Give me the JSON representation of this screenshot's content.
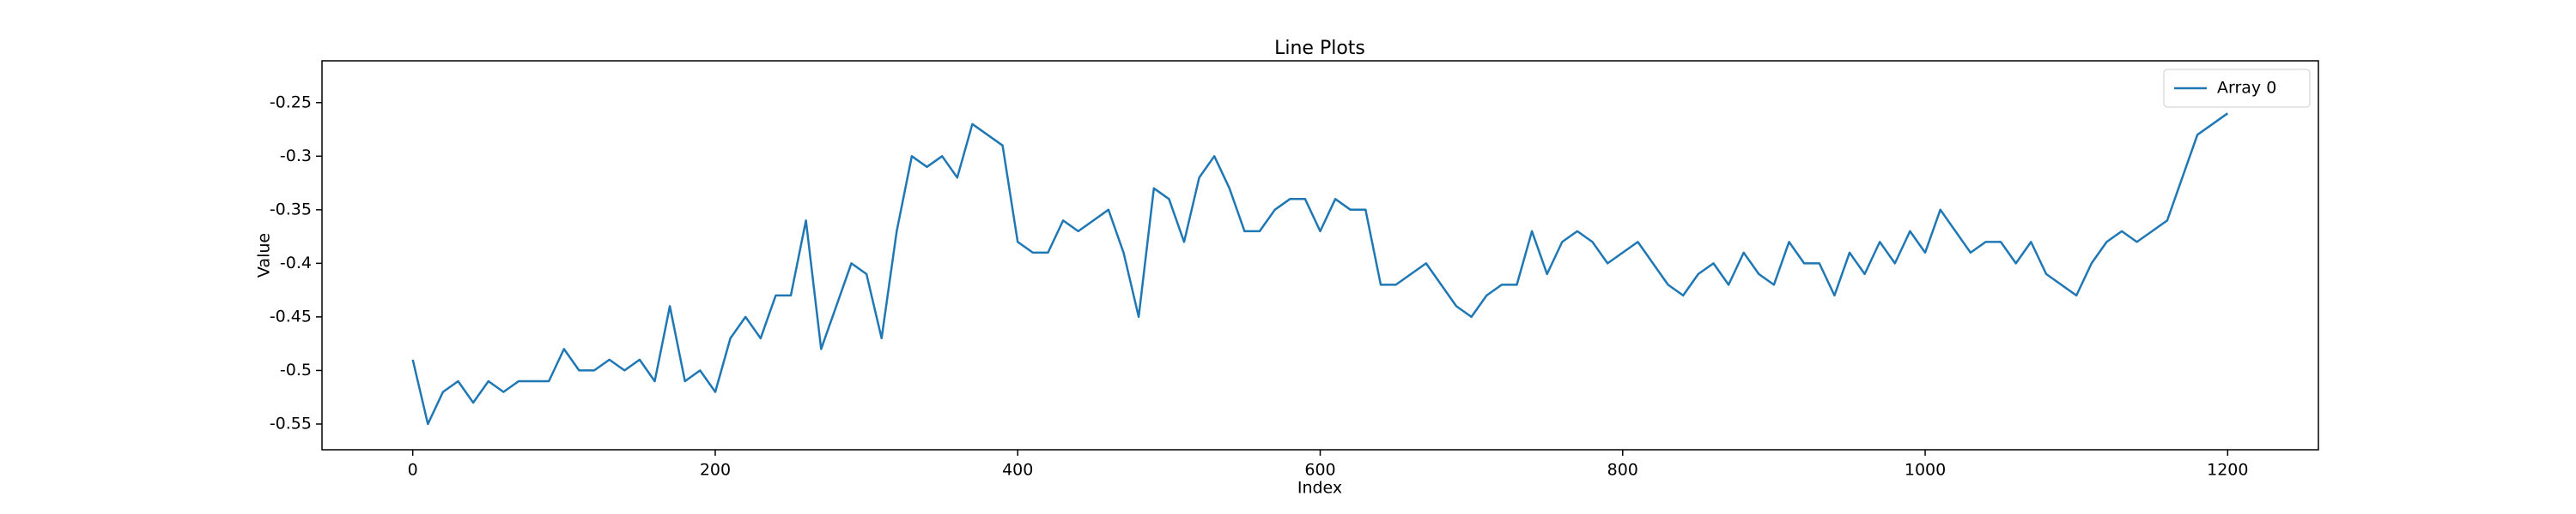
{
  "chart_data": {
    "type": "line",
    "title": "Line Plots",
    "x_label": "Index",
    "y_label": "Value",
    "x": [
      0,
      10,
      20,
      30,
      40,
      50,
      60,
      70,
      80,
      90,
      100,
      110,
      120,
      130,
      140,
      150,
      160,
      170,
      180,
      190,
      200,
      210,
      220,
      230,
      240,
      250,
      260,
      270,
      280,
      290,
      300,
      310,
      320,
      330,
      340,
      350,
      360,
      370,
      380,
      390,
      400,
      410,
      420,
      430,
      440,
      450,
      460,
      470,
      480,
      490,
      500,
      510,
      520,
      530,
      540,
      550,
      560,
      570,
      580,
      590,
      600,
      610,
      620,
      630,
      640,
      650,
      660,
      670,
      680,
      690,
      700,
      710,
      720,
      730,
      740,
      750,
      760,
      770,
      780,
      790,
      800,
      810,
      820,
      830,
      840,
      850,
      860,
      870,
      880,
      890,
      900,
      910,
      920,
      930,
      940,
      950,
      960,
      970,
      980,
      990,
      1000,
      1010,
      1020,
      1030,
      1040,
      1050,
      1060,
      1070,
      1080,
      1090,
      1100,
      1110,
      1120,
      1130,
      1140,
      1150,
      1160,
      1170,
      1180,
      1190,
      1200
    ],
    "series": [
      {
        "name": "Array 0",
        "color": "#1f77b4",
        "values": [
          -0.49,
          -0.55,
          -0.52,
          -0.51,
          -0.53,
          -0.51,
          -0.52,
          -0.51,
          -0.51,
          -0.51,
          -0.48,
          -0.5,
          -0.5,
          -0.49,
          -0.5,
          -0.49,
          -0.51,
          -0.44,
          -0.51,
          -0.5,
          -0.52,
          -0.47,
          -0.45,
          -0.47,
          -0.43,
          -0.43,
          -0.36,
          -0.48,
          -0.44,
          -0.4,
          -0.41,
          -0.47,
          -0.37,
          -0.3,
          -0.31,
          -0.3,
          -0.32,
          -0.27,
          -0.28,
          -0.29,
          -0.38,
          -0.39,
          -0.39,
          -0.36,
          -0.37,
          -0.36,
          -0.35,
          -0.39,
          -0.45,
          -0.33,
          -0.34,
          -0.38,
          -0.32,
          -0.3,
          -0.33,
          -0.37,
          -0.37,
          -0.35,
          -0.34,
          -0.34,
          -0.37,
          -0.34,
          -0.35,
          -0.35,
          -0.42,
          -0.42,
          -0.41,
          -0.4,
          -0.42,
          -0.44,
          -0.45,
          -0.43,
          -0.42,
          -0.42,
          -0.37,
          -0.41,
          -0.38,
          -0.37,
          -0.38,
          -0.4,
          -0.39,
          -0.38,
          -0.4,
          -0.42,
          -0.43,
          -0.41,
          -0.4,
          -0.42,
          -0.39,
          -0.41,
          -0.42,
          -0.38,
          -0.4,
          -0.4,
          -0.43,
          -0.39,
          -0.41,
          -0.38,
          -0.4,
          -0.37,
          -0.39,
          -0.35,
          -0.37,
          -0.39,
          -0.38,
          -0.38,
          -0.4,
          -0.38,
          -0.41,
          -0.42,
          -0.43,
          -0.4,
          -0.38,
          -0.37,
          -0.38,
          -0.37,
          -0.36,
          -0.32,
          -0.28,
          -0.27,
          -0.26
        ]
      }
    ],
    "xlim": [
      -60,
      1260
    ],
    "xticks": [
      0,
      200,
      400,
      600,
      800,
      1000,
      1200
    ],
    "ylim": [
      -0.574,
      -0.211
    ],
    "yticks": [
      -0.55,
      -0.5,
      -0.45,
      -0.4,
      -0.35,
      -0.3,
      -0.25
    ],
    "legend": "upper right",
    "grid": false
  }
}
